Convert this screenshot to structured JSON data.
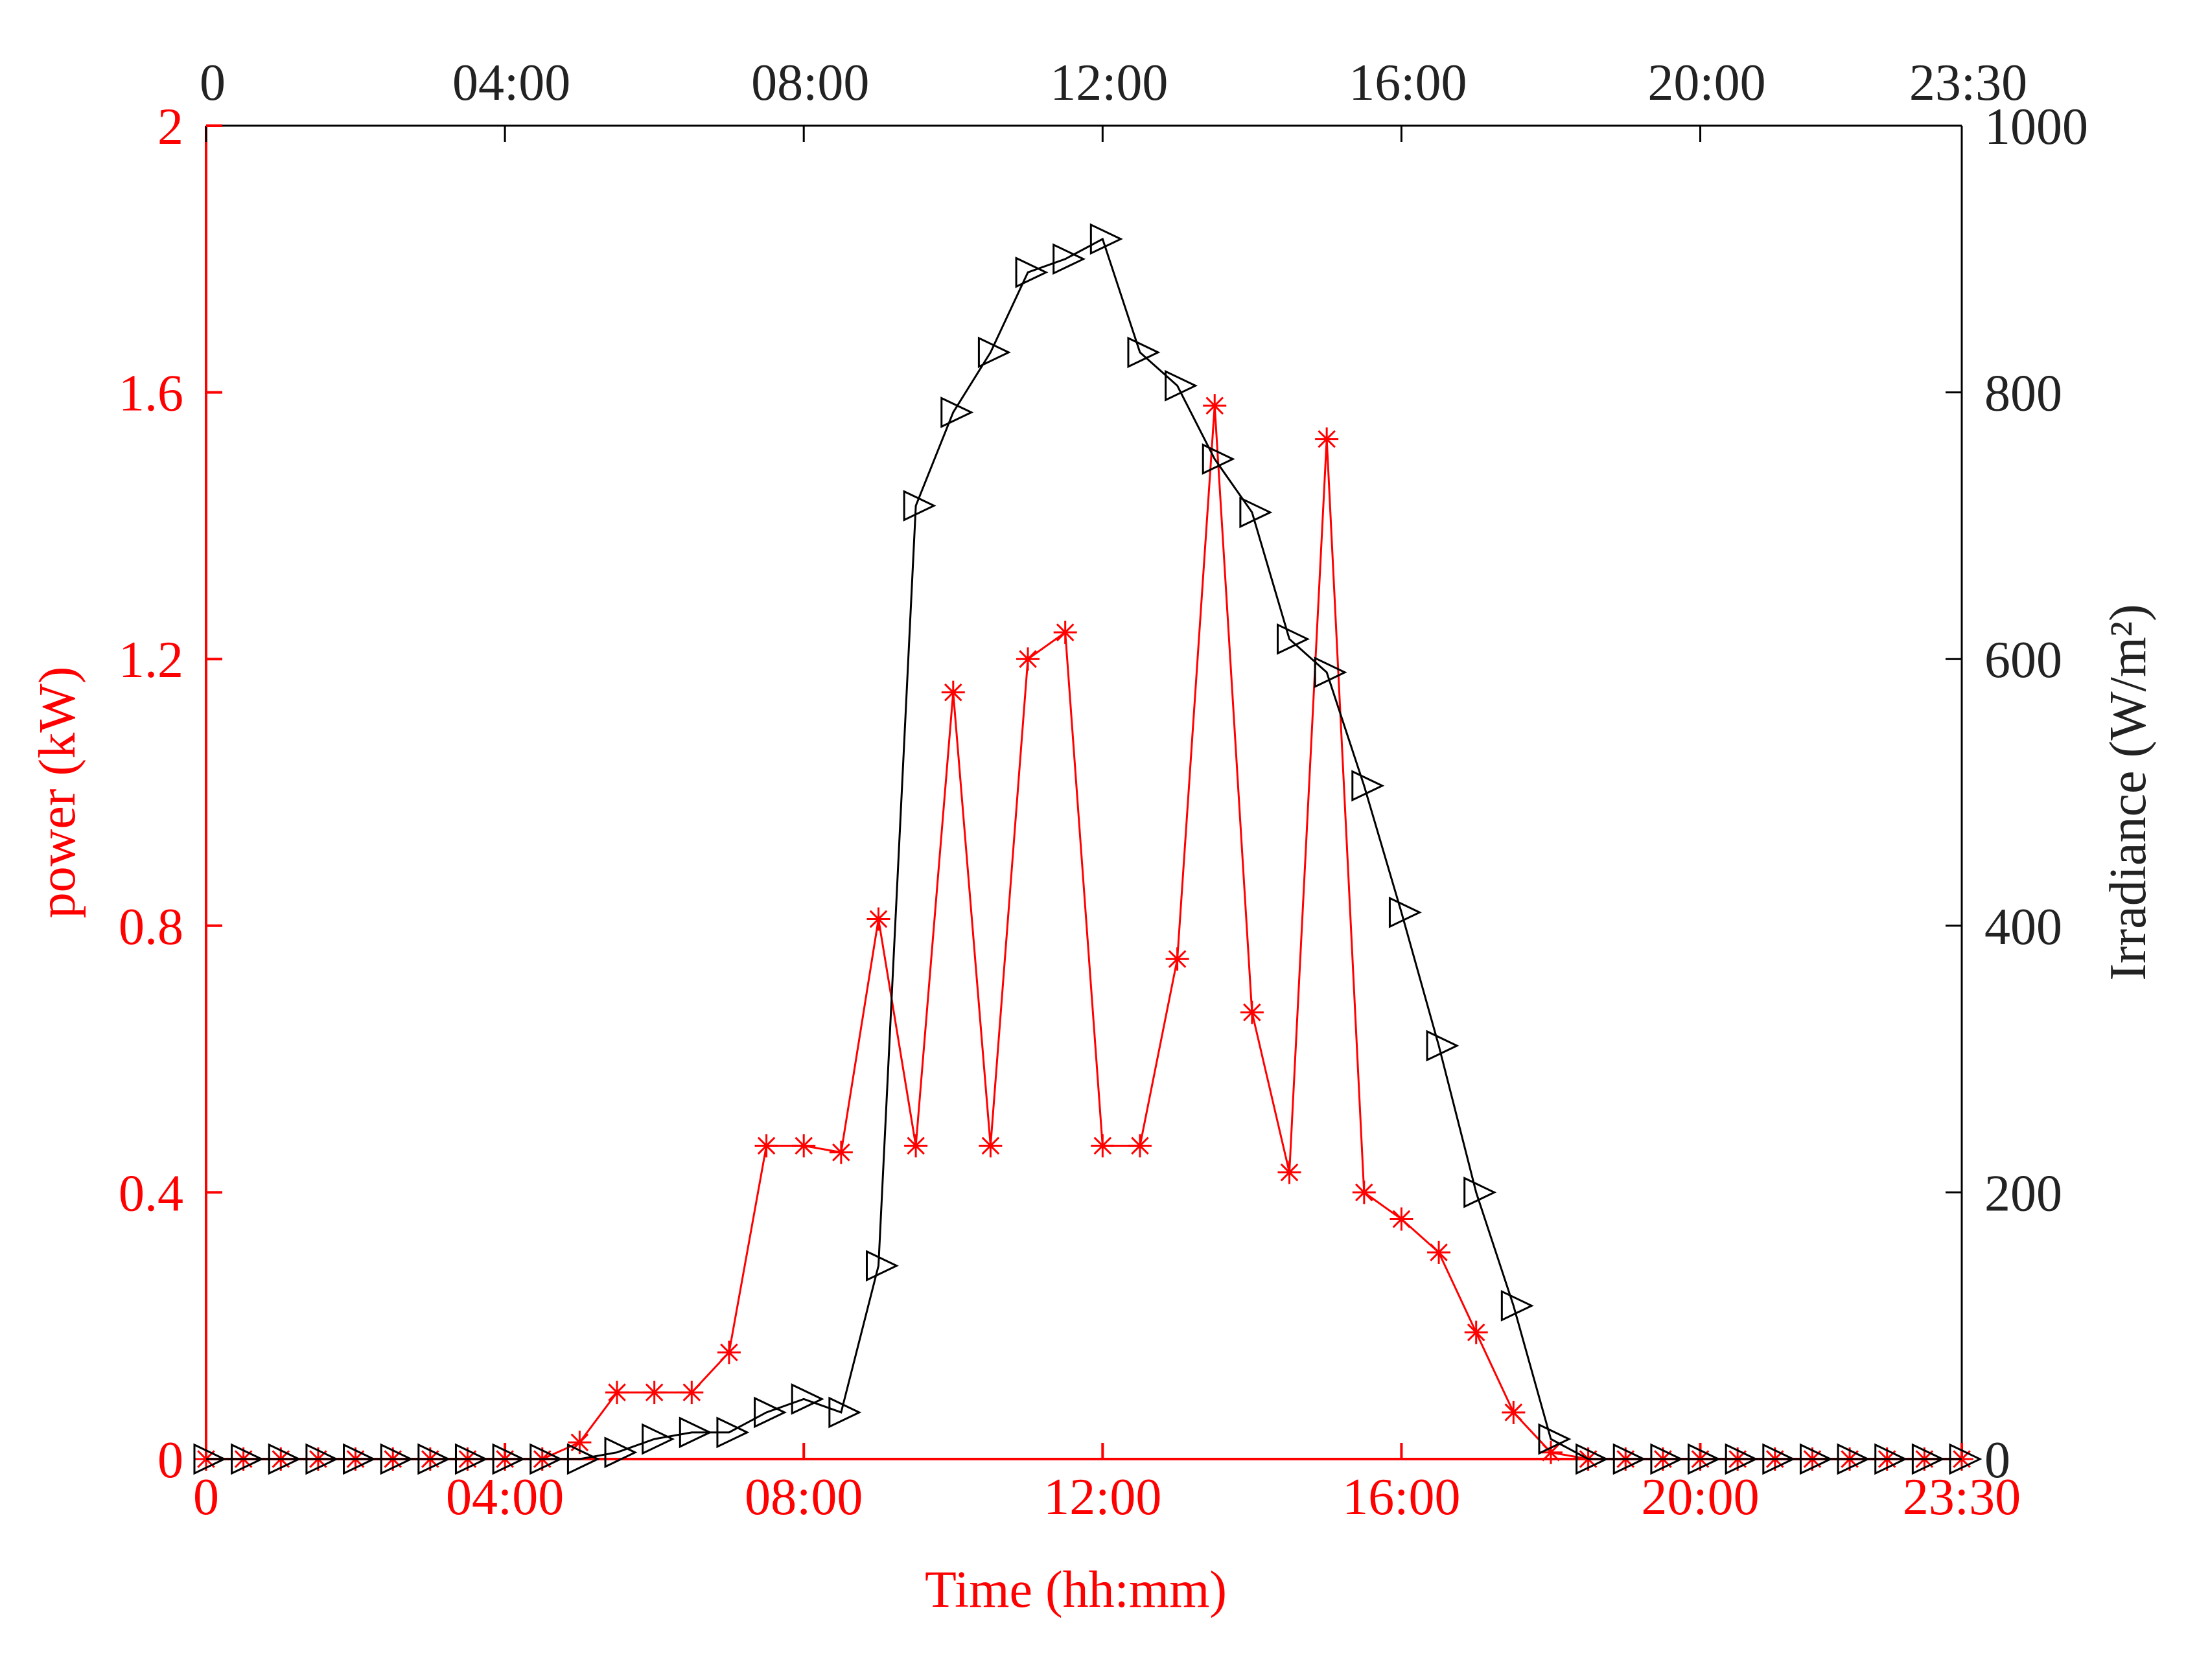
{
  "chart_data": {
    "type": "line",
    "xlabel": "Time (hh:mm)",
    "ylabel": "power (kW)",
    "y2label": "Irradiance (W/m²)",
    "x": [
      0,
      0.5,
      1,
      1.5,
      2,
      2.5,
      3,
      3.5,
      4,
      4.5,
      5,
      5.5,
      6,
      6.5,
      7,
      7.5,
      8,
      8.5,
      9,
      9.5,
      10,
      10.5,
      11,
      11.5,
      12,
      12.5,
      13,
      13.5,
      14,
      14.5,
      15,
      15.5,
      16,
      16.5,
      17,
      17.5,
      18,
      18.5,
      19,
      19.5,
      20,
      20.5,
      21,
      21.5,
      22,
      22.5,
      23,
      23.5
    ],
    "xlim": [
      0,
      23.5
    ],
    "xticks": [
      0,
      {
        "value": 4,
        "label": "04:00"
      },
      {
        "value": 8,
        "label": "08:00"
      },
      {
        "value": 12,
        "label": "12:00"
      },
      {
        "value": 16,
        "label": "16:00"
      },
      {
        "value": 20,
        "label": "20:00"
      },
      {
        "value": 23.5,
        "label": "23:30"
      }
    ],
    "ylim": [
      0,
      2
    ],
    "yticks": [
      0,
      0.4,
      0.8,
      1.2,
      1.6,
      2
    ],
    "y2lim": [
      0,
      1000
    ],
    "y2ticks": [
      0,
      200,
      400,
      600,
      800,
      1000
    ],
    "series": [
      {
        "name": "power",
        "color": "#ff0000",
        "marker": "asterisk",
        "values": [
          0,
          0,
          0,
          0,
          0,
          0,
          0,
          0,
          0,
          0,
          0.025,
          0.1,
          0.1,
          0.1,
          0.16,
          0.47,
          0.47,
          0.46,
          0.81,
          0.47,
          1.15,
          0.47,
          1.2,
          1.24,
          0.47,
          0.47,
          0.75,
          1.58,
          0.67,
          0.43,
          1.53,
          0.4,
          0.36,
          0.31,
          0.19,
          0.07,
          0.01,
          0,
          0,
          0,
          0,
          0,
          0,
          0,
          0,
          0,
          0,
          0
        ]
      },
      {
        "name": "Irradiance",
        "color": "#000000",
        "marker": "triangle",
        "axis": "y2",
        "values": [
          0,
          0,
          0,
          0,
          0,
          0,
          0,
          0,
          0,
          0,
          0,
          5,
          15,
          20,
          20,
          35,
          45,
          35,
          145,
          715,
          785,
          830,
          890,
          900,
          915,
          830,
          805,
          750,
          710,
          615,
          590,
          505,
          410,
          310,
          200,
          115,
          15,
          0,
          0,
          0,
          0,
          0,
          0,
          0,
          0,
          0,
          0,
          0
        ]
      }
    ]
  }
}
